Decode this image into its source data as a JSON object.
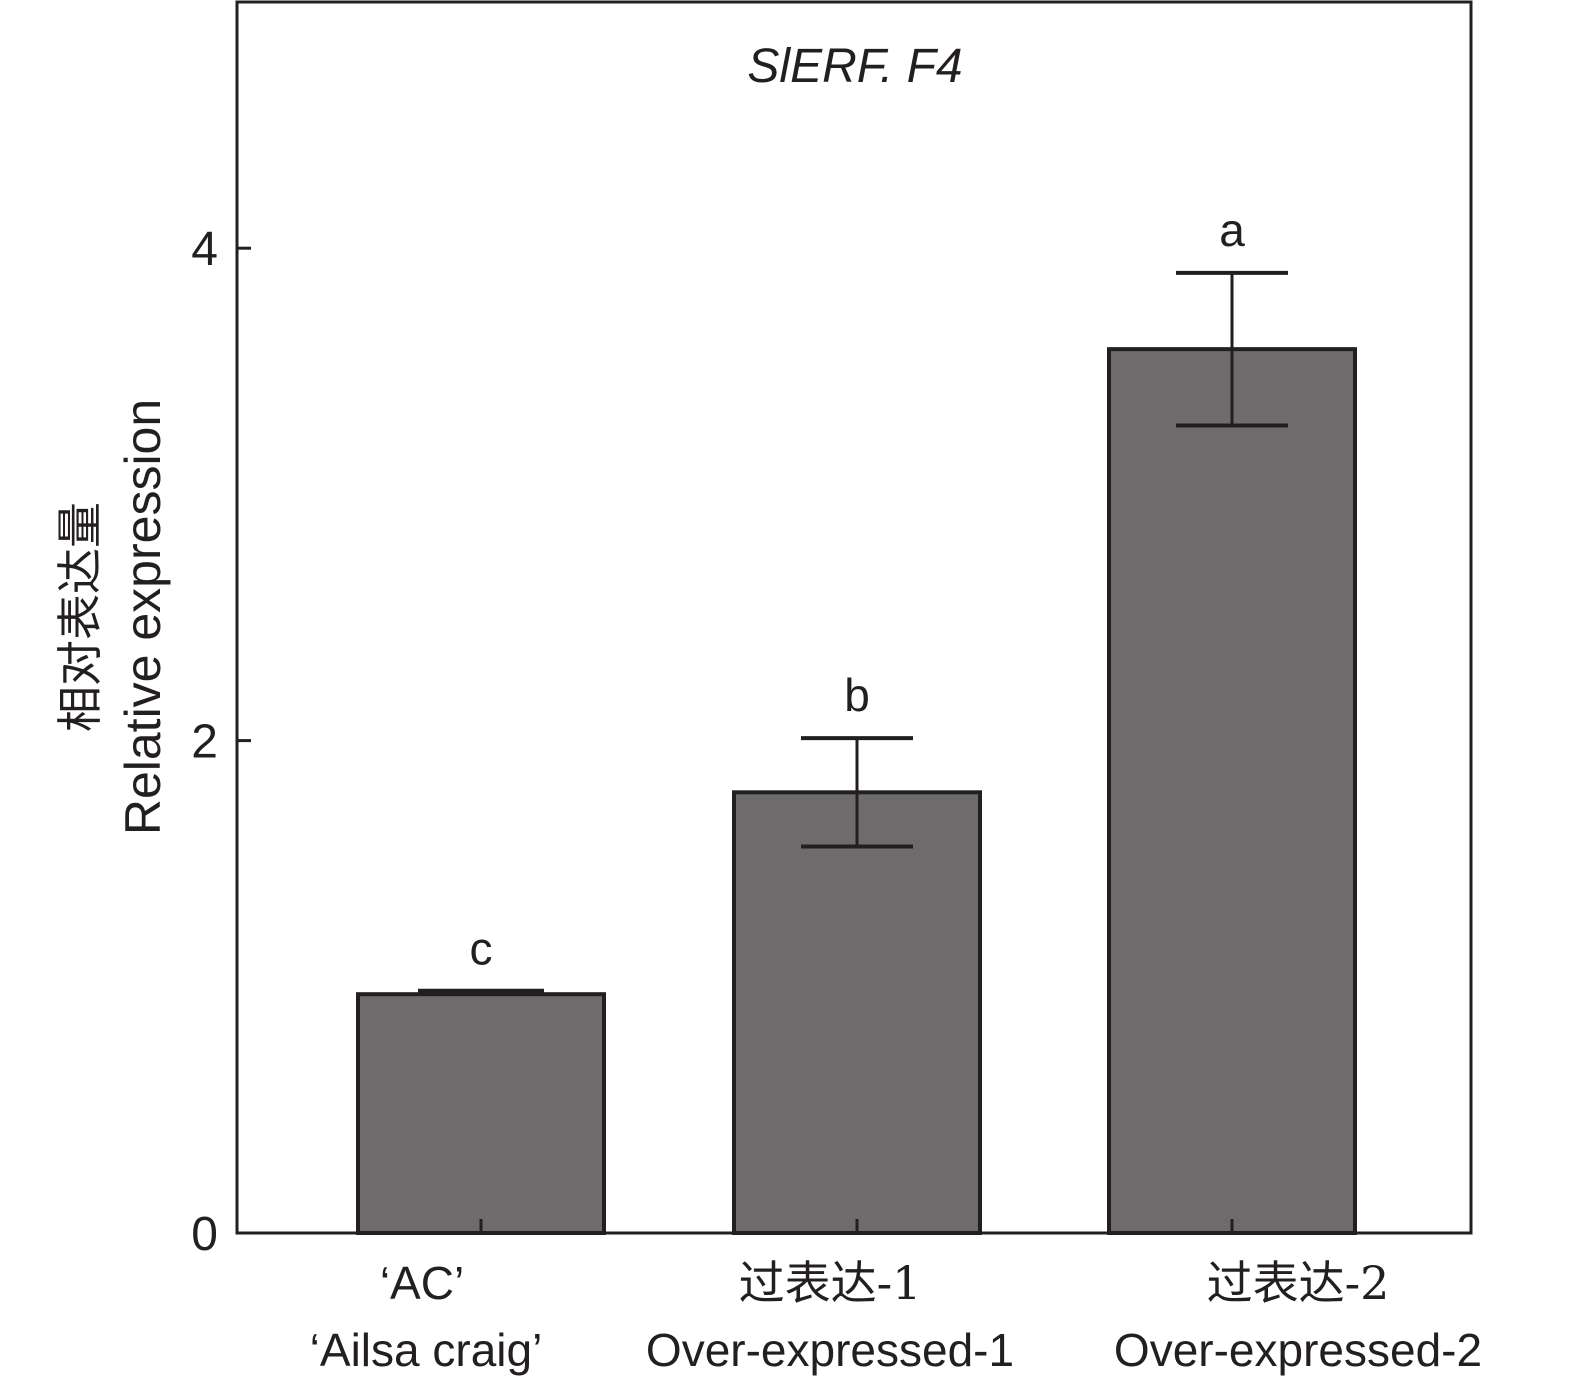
{
  "chart_data": {
    "type": "bar",
    "title": "SlERF. F4",
    "ylabel_cn": "相对表达量",
    "ylabel": "Relative expression",
    "xlabel": "",
    "ylim": [
      0,
      5
    ],
    "yticks": [
      0,
      2,
      4
    ],
    "ytick_labels": [
      "0",
      "2",
      "4"
    ],
    "grid": false,
    "categories": [
      {
        "cn": "‘AC’",
        "en": "‘Ailsa craig’"
      },
      {
        "cn": "过表达-1",
        "en": "Over-expressed-1"
      },
      {
        "cn": "过表达-2",
        "en": "Over-expressed-2"
      }
    ],
    "values": [
      0.97,
      1.79,
      3.59
    ],
    "errors": [
      0.01,
      0.22,
      0.31
    ],
    "significance_labels": [
      "c",
      "b",
      "a"
    ],
    "colors": {
      "bar_fill": "#6d6b6c",
      "stroke": "#231f20"
    }
  }
}
